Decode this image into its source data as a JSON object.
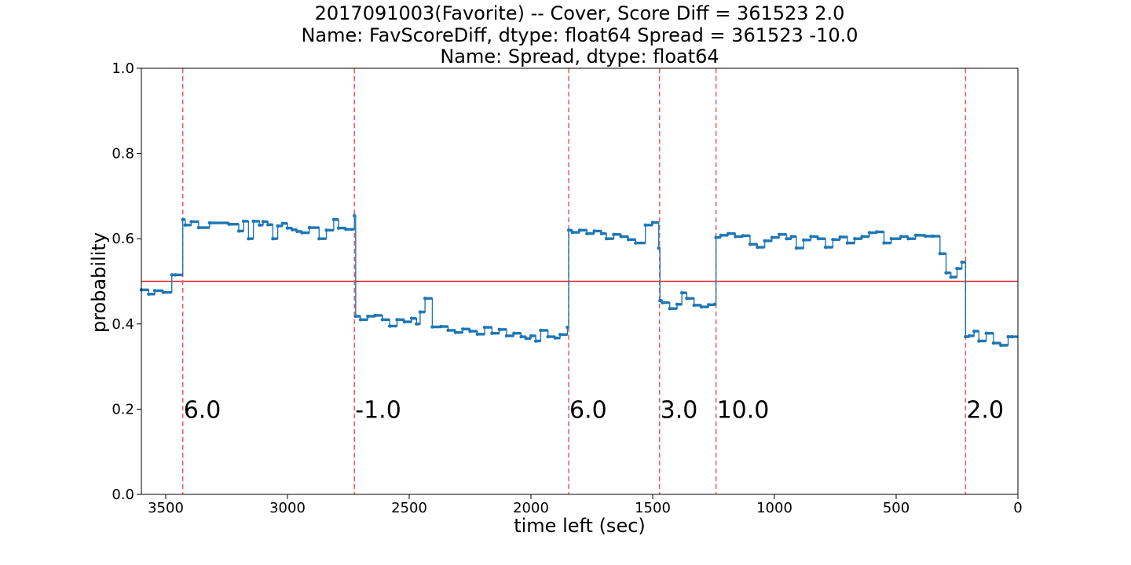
{
  "chart_data": {
    "type": "line",
    "title_lines": [
      "2017091003(Favorite) -- Cover, Score Diff = 361523    2.0",
      "Name: FavScoreDiff, dtype: float64 Spread = 361523   -10.0",
      "Name: Spread, dtype: float64"
    ],
    "xlabel": "time left (sec)",
    "ylabel": "probability",
    "xlim": [
      3600,
      0
    ],
    "ylim": [
      0.0,
      1.0
    ],
    "xticks": [
      3500,
      3000,
      2500,
      2000,
      1500,
      1000,
      500,
      0
    ],
    "xtick_labels": [
      "3500",
      "3000",
      "2500",
      "2000",
      "1500",
      "1000",
      "500",
      "0"
    ],
    "yticks": [
      0.0,
      0.2,
      0.4,
      0.6,
      0.8,
      1.0
    ],
    "ytick_labels": [
      "0.0",
      "0.2",
      "0.4",
      "0.6",
      "0.8",
      "1.0"
    ],
    "grid": false,
    "threshold": 0.5,
    "colors": {
      "series": "#1f77b4",
      "threshold": "#d62728",
      "event": "#ef5a5a"
    },
    "events": [
      {
        "x": 3430,
        "label": "6.0"
      },
      {
        "x": 2725,
        "label": "-1.0"
      },
      {
        "x": 1845,
        "label": "6.0"
      },
      {
        "x": 1472,
        "label": "3.0"
      },
      {
        "x": 1240,
        "label": "10.0"
      },
      {
        "x": 215,
        "label": "2.0"
      }
    ],
    "series": [
      {
        "x": [
          3600,
          3570,
          3545,
          3510,
          3475,
          3460,
          3430,
          3420,
          3395,
          3365,
          3320,
          3240,
          3200,
          3180,
          3160,
          3140,
          3115,
          3100,
          3080,
          3060,
          3040,
          3020,
          3000,
          2980,
          2960,
          2940,
          2910,
          2870,
          2840,
          2810,
          2790,
          2760,
          2725,
          2720,
          2700,
          2670,
          2640,
          2610,
          2580,
          2550,
          2520,
          2490,
          2470,
          2455,
          2435,
          2405,
          2370,
          2340,
          2310,
          2280,
          2250,
          2220,
          2190,
          2160,
          2130,
          2100,
          2070,
          2040,
          2020,
          2000,
          1980,
          1960,
          1930,
          1900,
          1880,
          1850,
          1845,
          1830,
          1800,
          1770,
          1740,
          1710,
          1690,
          1660,
          1630,
          1600,
          1570,
          1530,
          1500,
          1475,
          1470,
          1460,
          1430,
          1400,
          1380,
          1360,
          1330,
          1300,
          1270,
          1245,
          1240,
          1220,
          1190,
          1160,
          1130,
          1100,
          1070,
          1040,
          1010,
          980,
          950,
          930,
          910,
          880,
          850,
          820,
          790,
          760,
          730,
          700,
          670,
          640,
          610,
          580,
          550,
          520,
          480,
          450,
          420,
          380,
          350,
          320,
          295,
          275,
          250,
          230,
          215,
          200,
          180,
          160,
          130,
          100,
          70,
          40,
          25
        ],
        "y": [
          0.48,
          0.47,
          0.478,
          0.474,
          0.515,
          0.515,
          0.645,
          0.632,
          0.64,
          0.626,
          0.637,
          0.634,
          0.618,
          0.641,
          0.6,
          0.641,
          0.632,
          0.64,
          0.633,
          0.6,
          0.63,
          0.636,
          0.625,
          0.621,
          0.617,
          0.614,
          0.626,
          0.6,
          0.62,
          0.645,
          0.625,
          0.622,
          0.654,
          0.418,
          0.41,
          0.418,
          0.42,
          0.41,
          0.395,
          0.41,
          0.405,
          0.413,
          0.4,
          0.428,
          0.46,
          0.393,
          0.394,
          0.385,
          0.38,
          0.388,
          0.383,
          0.376,
          0.392,
          0.378,
          0.387,
          0.372,
          0.378,
          0.37,
          0.366,
          0.372,
          0.36,
          0.385,
          0.37,
          0.367,
          0.375,
          0.392,
          0.62,
          0.615,
          0.62,
          0.612,
          0.618,
          0.612,
          0.6,
          0.61,
          0.605,
          0.598,
          0.59,
          0.632,
          0.638,
          0.578,
          0.455,
          0.45,
          0.436,
          0.446,
          0.473,
          0.46,
          0.444,
          0.44,
          0.445,
          0.446,
          0.603,
          0.608,
          0.612,
          0.605,
          0.607,
          0.587,
          0.58,
          0.595,
          0.603,
          0.61,
          0.6,
          0.605,
          0.578,
          0.597,
          0.605,
          0.6,
          0.58,
          0.598,
          0.604,
          0.59,
          0.6,
          0.605,
          0.614,
          0.616,
          0.59,
          0.6,
          0.605,
          0.6,
          0.608,
          0.606,
          0.606,
          0.565,
          0.52,
          0.51,
          0.53,
          0.545,
          0.37,
          0.372,
          0.383,
          0.36,
          0.378,
          0.355,
          0.35,
          0.37,
          0.37
        ]
      }
    ]
  }
}
